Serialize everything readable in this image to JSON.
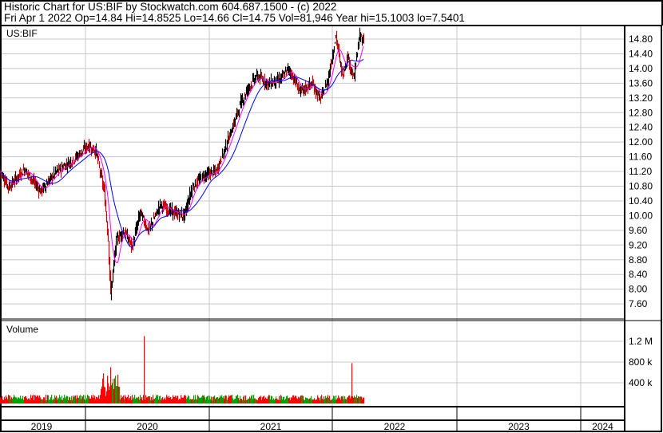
{
  "header": {
    "title": "Historic Chart for US:BIF by Stockwatch.com 604.687.1500 - (c) 2022",
    "quote": "Fri Apr  1 2022  Op=14.84  Hi=14.8525  Lo=14.66  Cl=14.75  Vol=81,946  Year hi=15.1003  lo=7.5401"
  },
  "chart_data": [
    {
      "type": "line",
      "title": "US:BIF",
      "ylim": [
        7.4,
        15.0
      ],
      "y_ticks": [
        "14.80",
        "14.40",
        "14.00",
        "13.60",
        "13.20",
        "12.80",
        "12.40",
        "12.00",
        "11.60",
        "11.20",
        "10.80",
        "10.40",
        "10.00",
        "9.60",
        "9.20",
        "8.80",
        "8.40",
        "8.00",
        "7.60"
      ],
      "grid": true,
      "colors": {
        "price": "#000000",
        "ma_short": "#ff00ff",
        "ma_long": "#0000ff"
      },
      "series": [
        {
          "values": [
            [
              "2019-04-24",
              11.2
            ],
            [
              "2019-05-18",
              10.77
            ],
            [
              "2019-07-04",
              11.27
            ],
            [
              "2019-08-20",
              10.66
            ],
            [
              "2019-10-06",
              11.2
            ],
            [
              "2019-11-22",
              11.5
            ],
            [
              "2020-01-08",
              11.9
            ],
            [
              "2020-01-31",
              11.75
            ],
            [
              "2020-02-24",
              10.66
            ],
            [
              "2020-03-07",
              9.36
            ],
            [
              "2020-03-14",
              7.85
            ],
            [
              "2020-03-31",
              9.36
            ],
            [
              "2020-04-23",
              9.58
            ],
            [
              "2020-05-17",
              9.14
            ],
            [
              "2020-06-09",
              10.1
            ],
            [
              "2020-07-03",
              9.58
            ],
            [
              "2020-08-07",
              10.3
            ],
            [
              "2020-09-11",
              10.1
            ],
            [
              "2020-10-17",
              10.0
            ],
            [
              "2020-11-09",
              10.77
            ],
            [
              "2020-12-15",
              11.1
            ],
            [
              "2021-01-19",
              11.2
            ],
            [
              "2021-02-24",
              12.07
            ],
            [
              "2021-04-01",
              13.05
            ],
            [
              "2021-04-24",
              13.48
            ],
            [
              "2021-05-18",
              13.8
            ],
            [
              "2021-06-22",
              13.59
            ],
            [
              "2021-07-27",
              13.7
            ],
            [
              "2021-08-20",
              14.0
            ],
            [
              "2021-09-24",
              13.37
            ],
            [
              "2021-10-29",
              13.59
            ],
            [
              "2021-11-22",
              13.15
            ],
            [
              "2021-12-15",
              13.7
            ],
            [
              "2022-01-07",
              14.89
            ],
            [
              "2022-01-26",
              13.8
            ],
            [
              "2022-02-11",
              14.35
            ],
            [
              "2022-02-28",
              13.7
            ],
            [
              "2022-03-18",
              14.89
            ],
            [
              "2022-04-01",
              14.75
            ]
          ]
        }
      ]
    },
    {
      "type": "bar",
      "title": "Volume",
      "ylim": [
        0,
        1400000
      ],
      "y_ticks": [
        "1.2 M",
        "800 k",
        "400 k"
      ],
      "colors": {
        "up": "#00a000",
        "down": "#ff0000"
      },
      "notable_values": [
        [
          "2020-03-14",
          700000
        ],
        [
          "2020-06-20",
          1300000
        ],
        [
          "2022-02-24",
          780000
        ]
      ]
    }
  ],
  "x_axis": {
    "labels": [
      "2019",
      "2020",
      "2021",
      "2022",
      "2023",
      "2024"
    ]
  }
}
